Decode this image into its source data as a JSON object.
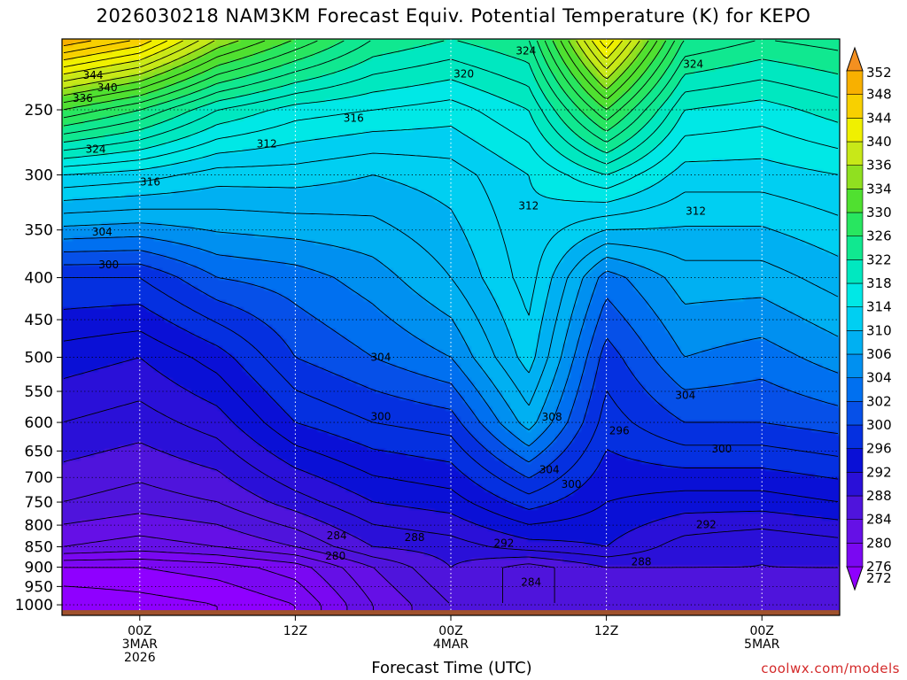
{
  "title": "2026030218 NAM3KM Forecast Equiv. Potential Temperature (K) for KEPO",
  "credit": "coolwx.com/models",
  "chart_data": {
    "type": "heatmap",
    "xlabel": "Forecast Time (UTC)",
    "ylabel": "",
    "y_scale": "log",
    "y_inverted": true,
    "ylim": [
      1030,
      205
    ],
    "xlim": [
      -6,
      54
    ],
    "y_ticks": [
      250,
      300,
      350,
      400,
      450,
      500,
      550,
      600,
      650,
      700,
      750,
      800,
      850,
      900,
      950,
      1000
    ],
    "x_ticks": [
      {
        "x": 0,
        "lines": [
          "00Z",
          "3MAR",
          "2026"
        ]
      },
      {
        "x": 12,
        "lines": [
          "12Z"
        ]
      },
      {
        "x": 24,
        "lines": [
          "00Z",
          "4MAR"
        ]
      },
      {
        "x": 36,
        "lines": [
          "12Z"
        ]
      },
      {
        "x": 48,
        "lines": [
          "00Z",
          "5MAR"
        ]
      }
    ],
    "grid": true,
    "colorbar": {
      "unit": "K",
      "levels": [
        272,
        276,
        280,
        284,
        288,
        292,
        296,
        300,
        302,
        304,
        306,
        310,
        314,
        318,
        322,
        326,
        330,
        334,
        336,
        340,
        344,
        348,
        352
      ],
      "colors": [
        "#8f00ff",
        "#7a08f2",
        "#6510e6",
        "#4f14dc",
        "#2a10d8",
        "#0a10d6",
        "#0530e0",
        "#0650e8",
        "#0070f0",
        "#0090f0",
        "#00b0f2",
        "#00cff2",
        "#00e8e6",
        "#00e8c0",
        "#10e890",
        "#28e660",
        "#50e030",
        "#90e020",
        "#c8e818",
        "#f0f000",
        "#f8d000",
        "#f8b000",
        "#f49020"
      ]
    },
    "profiles": [
      {
        "x": -6,
        "levels": [
          [
            1000,
            272
          ],
          [
            900,
            276
          ],
          [
            850,
            282
          ],
          [
            750,
            286
          ],
          [
            600,
            290
          ],
          [
            500,
            293
          ],
          [
            400,
            298
          ],
          [
            300,
            314
          ],
          [
            250,
            330
          ],
          [
            205,
            350
          ]
        ]
      },
      {
        "x": 0,
        "levels": [
          [
            1000,
            273
          ],
          [
            900,
            276
          ],
          [
            850,
            281
          ],
          [
            750,
            285
          ],
          [
            600,
            289
          ],
          [
            500,
            292
          ],
          [
            400,
            298
          ],
          [
            300,
            313
          ],
          [
            250,
            326
          ],
          [
            205,
            346
          ]
        ]
      },
      {
        "x": 6,
        "levels": [
          [
            1000,
            274
          ],
          [
            900,
            277
          ],
          [
            850,
            282
          ],
          [
            750,
            286
          ],
          [
            600,
            291
          ],
          [
            500,
            295
          ],
          [
            400,
            302
          ],
          [
            300,
            311
          ],
          [
            250,
            320
          ],
          [
            205,
            336
          ]
        ]
      },
      {
        "x": 12,
        "levels": [
          [
            1000,
            276
          ],
          [
            900,
            279
          ],
          [
            850,
            284
          ],
          [
            750,
            289
          ],
          [
            600,
            296
          ],
          [
            500,
            300
          ],
          [
            400,
            303
          ],
          [
            300,
            311
          ],
          [
            250,
            317
          ],
          [
            205,
            330
          ]
        ]
      },
      {
        "x": 18,
        "levels": [
          [
            1000,
            282
          ],
          [
            900,
            284
          ],
          [
            850,
            288
          ],
          [
            750,
            292
          ],
          [
            600,
            298
          ],
          [
            500,
            302
          ],
          [
            400,
            305
          ],
          [
            300,
            310
          ],
          [
            250,
            316
          ],
          [
            205,
            324
          ]
        ]
      },
      {
        "x": 24,
        "levels": [
          [
            1000,
            286
          ],
          [
            900,
            288
          ],
          [
            850,
            289
          ],
          [
            750,
            293
          ],
          [
            600,
            299
          ],
          [
            500,
            304
          ],
          [
            400,
            308
          ],
          [
            300,
            311
          ],
          [
            250,
            315
          ],
          [
            205,
            322
          ]
        ]
      },
      {
        "x": 30,
        "levels": [
          [
            1000,
            286
          ],
          [
            900,
            285
          ],
          [
            850,
            291
          ],
          [
            750,
            297
          ],
          [
            600,
            307
          ],
          [
            500,
            311
          ],
          [
            400,
            313
          ],
          [
            300,
            314
          ],
          [
            250,
            318
          ],
          [
            205,
            324
          ]
        ]
      },
      {
        "x": 36,
        "levels": [
          [
            1000,
            286
          ],
          [
            900,
            288
          ],
          [
            850,
            292
          ],
          [
            750,
            294
          ],
          [
            600,
            297
          ],
          [
            500,
            299
          ],
          [
            400,
            303
          ],
          [
            300,
            318
          ],
          [
            250,
            330
          ],
          [
            205,
            344
          ]
        ]
      },
      {
        "x": 42,
        "levels": [
          [
            1000,
            287
          ],
          [
            900,
            288
          ],
          [
            850,
            289
          ],
          [
            750,
            293
          ],
          [
            600,
            300
          ],
          [
            500,
            304
          ],
          [
            400,
            307
          ],
          [
            300,
            313
          ],
          [
            250,
            318
          ],
          [
            205,
            326
          ]
        ]
      },
      {
        "x": 48,
        "levels": [
          [
            1000,
            287
          ],
          [
            900,
            288
          ],
          [
            850,
            288
          ],
          [
            750,
            293
          ],
          [
            600,
            300
          ],
          [
            500,
            303
          ],
          [
            400,
            307
          ],
          [
            300,
            313
          ],
          [
            250,
            317
          ],
          [
            205,
            324
          ]
        ]
      },
      {
        "x": 54,
        "levels": [
          [
            1000,
            288
          ],
          [
            900,
            288
          ],
          [
            850,
            289
          ],
          [
            750,
            294
          ],
          [
            600,
            301
          ],
          [
            500,
            305
          ],
          [
            400,
            309
          ],
          [
            300,
            314
          ],
          [
            250,
            319
          ],
          [
            205,
            325
          ]
        ]
      }
    ],
    "contour_interval": 2,
    "contour_labels": [
      {
        "text": "344",
        "x": -3.6,
        "p": 227
      },
      {
        "text": "340",
        "x": -2.5,
        "p": 235
      },
      {
        "text": "336",
        "x": -4.4,
        "p": 242
      },
      {
        "text": "324",
        "x": -3.4,
        "p": 279
      },
      {
        "text": "316",
        "x": 0.8,
        "p": 306
      },
      {
        "text": "312",
        "x": 9.8,
        "p": 275
      },
      {
        "text": "316",
        "x": 16.5,
        "p": 256
      },
      {
        "text": "320",
        "x": 25,
        "p": 226
      },
      {
        "text": "324",
        "x": 29.8,
        "p": 212
      },
      {
        "text": "324",
        "x": 42.7,
        "p": 220
      },
      {
        "text": "312",
        "x": 30,
        "p": 327
      },
      {
        "text": "312",
        "x": 42.9,
        "p": 332
      },
      {
        "text": "304",
        "x": -2.9,
        "p": 352
      },
      {
        "text": "300",
        "x": -2.4,
        "p": 386
      },
      {
        "text": "304",
        "x": 18.6,
        "p": 500
      },
      {
        "text": "300",
        "x": 18.6,
        "p": 590
      },
      {
        "text": "308",
        "x": 31.8,
        "p": 591
      },
      {
        "text": "296",
        "x": 37,
        "p": 614
      },
      {
        "text": "304",
        "x": 42.1,
        "p": 556
      },
      {
        "text": "300",
        "x": 44.9,
        "p": 646
      },
      {
        "text": "304",
        "x": 31.6,
        "p": 685
      },
      {
        "text": "300",
        "x": 33.3,
        "p": 714
      },
      {
        "text": "284",
        "x": 15.2,
        "p": 824
      },
      {
        "text": "288",
        "x": 21.2,
        "p": 828
      },
      {
        "text": "292",
        "x": 28.1,
        "p": 842
      },
      {
        "text": "292",
        "x": 43.7,
        "p": 799
      },
      {
        "text": "280",
        "x": 15.1,
        "p": 872
      },
      {
        "text": "288",
        "x": 38.7,
        "p": 886
      },
      {
        "text": "284",
        "x": 30.2,
        "p": 938
      }
    ],
    "terrain": {
      "surface_p": 1015,
      "color": "#a0522d"
    }
  }
}
